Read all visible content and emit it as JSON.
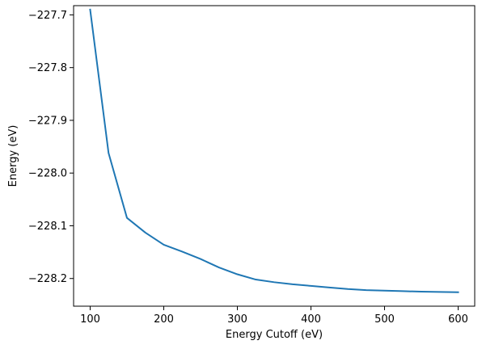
{
  "chart_data": {
    "type": "line",
    "title": "",
    "xlabel": "Energy Cutoff (eV)",
    "ylabel": "Energy (eV)",
    "xlim": [
      77.5,
      622.5
    ],
    "ylim": [
      -228.2525,
      -227.6825
    ],
    "xticks": [
      100,
      200,
      300,
      400,
      500,
      600
    ],
    "xtick_labels": [
      "100",
      "200",
      "300",
      "400",
      "500",
      "600"
    ],
    "yticks": [
      -227.7,
      -227.8,
      -227.9,
      -228.0,
      -228.1,
      -228.2
    ],
    "ytick_labels": [
      "−227.7",
      "−227.8",
      "−227.9",
      "−228.0",
      "−228.1",
      "−228.2"
    ],
    "grid": false,
    "line_color": "#1f77b4",
    "series": [
      {
        "x": [
          100,
          125,
          150,
          175,
          200,
          225,
          250,
          275,
          300,
          325,
          350,
          375,
          400,
          425,
          450,
          475,
          500,
          525,
          550,
          575,
          600
        ],
        "values": [
          -227.69,
          -227.962,
          -228.085,
          -228.113,
          -228.136,
          -228.149,
          -228.163,
          -228.179,
          -228.192,
          -228.202,
          -228.207,
          -228.211,
          -228.214,
          -228.217,
          -228.22,
          -228.222,
          -228.223,
          -228.224,
          -228.225,
          -228.2255,
          -228.226
        ]
      }
    ]
  }
}
